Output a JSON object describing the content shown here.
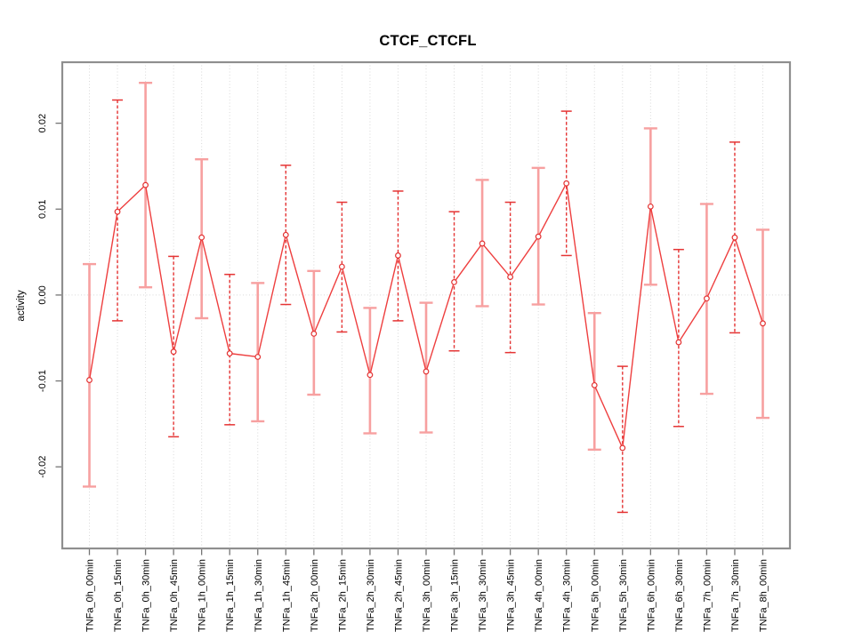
{
  "chart_data": {
    "type": "line",
    "title": "CTCF_CTCFL",
    "xlabel": "",
    "ylabel": "activity",
    "legend": "none",
    "grid": "dotted vertical gridline at every category; dotted horizontal line at y=0",
    "categories": [
      "TNFa_0h_00min",
      "TNFa_0h_15min",
      "TNFa_0h_30min",
      "TNFa_0h_45min",
      "TNFa_1h_00min",
      "TNFa_1h_15min",
      "TNFa_1h_30min",
      "TNFa_1h_45min",
      "TNFa_2h_00min",
      "TNFa_2h_15min",
      "TNFa_2h_30min",
      "TNFa_2h_45min",
      "TNFa_3h_00min",
      "TNFa_3h_15min",
      "TNFa_3h_30min",
      "TNFa_3h_45min",
      "TNFa_4h_00min",
      "TNFa_4h_30min",
      "TNFa_5h_00min",
      "TNFa_5h_30min",
      "TNFa_6h_00min",
      "TNFa_6h_30min",
      "TNFa_7h_00min",
      "TNFa_7h_30min",
      "TNFa_8h_00min"
    ],
    "series": [
      {
        "name": "activity",
        "values": [
          -0.0099,
          0.0097,
          0.0128,
          -0.0066,
          0.0067,
          -0.0068,
          -0.0072,
          0.007,
          -0.0045,
          0.0033,
          -0.0093,
          0.0046,
          -0.0089,
          0.0015,
          0.006,
          0.0021,
          0.0068,
          0.013,
          -0.0105,
          -0.0178,
          0.0103,
          -0.0055,
          -0.0004,
          0.0067,
          -0.0033
        ]
      }
    ],
    "error_high": [
      0.0036,
      0.0227,
      0.0247,
      0.0045,
      0.0158,
      0.0024,
      0.0014,
      0.0151,
      0.0028,
      0.0108,
      -0.0015,
      0.0121,
      -0.0009,
      0.0097,
      0.0134,
      0.0108,
      0.0148,
      0.0214,
      -0.0021,
      -0.0083,
      0.0194,
      0.0053,
      0.0106,
      0.0178,
      0.0076
    ],
    "error_low": [
      -0.0223,
      -0.003,
      0.0009,
      -0.0165,
      -0.0027,
      -0.0151,
      -0.0147,
      -0.0011,
      -0.0116,
      -0.0043,
      -0.0161,
      -0.003,
      -0.016,
      -0.0065,
      -0.0013,
      -0.0067,
      -0.0011,
      0.0046,
      -0.018,
      -0.0253,
      0.0012,
      -0.0153,
      -0.0115,
      -0.0044,
      -0.0143
    ],
    "error_bar_styles": [
      "light",
      "dark",
      "light",
      "dark",
      "light",
      "dark",
      "light",
      "dark",
      "light",
      "dark",
      "light",
      "dark",
      "light",
      "dark",
      "light",
      "dark",
      "light",
      "dark",
      "light",
      "dark",
      "light",
      "dark",
      "light",
      "dark",
      "light"
    ],
    "yticks": [
      -0.02,
      -0.01,
      0,
      0.01,
      0.02
    ],
    "ytick_labels": [
      "-0.02",
      "-0.01",
      "0.00",
      "0.01",
      "0.02"
    ],
    "ylim": [
      -0.0295,
      0.0271
    ]
  },
  "colors": {
    "series_red": "#ee3f3f",
    "point_red": "#e33232",
    "error_bar_dark": "#e53434",
    "error_bar_light": "#f7a0a0",
    "grid_gray": "#d9d9d9",
    "zero_line_gray": "#d9d9d9",
    "box_gray": "#8f8f8f",
    "tick_gray": "#757575",
    "text_black": "#000000"
  }
}
